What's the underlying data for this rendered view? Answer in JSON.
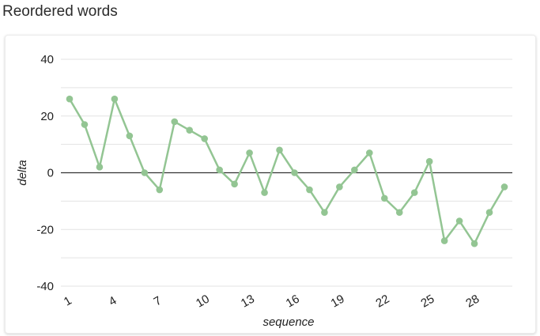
{
  "page_title": "Reordered words",
  "chart_data": {
    "type": "line",
    "title": "",
    "xlabel": "sequence",
    "ylabel": "delta",
    "x": [
      1,
      2,
      3,
      4,
      5,
      6,
      7,
      8,
      9,
      10,
      11,
      12,
      13,
      14,
      15,
      16,
      17,
      18,
      19,
      20,
      21,
      22,
      23,
      24,
      25,
      26,
      27,
      28,
      29,
      30
    ],
    "series": [
      {
        "values": [
          26,
          17,
          2,
          26,
          13,
          0,
          -6,
          18,
          15,
          12,
          1,
          -4,
          7,
          -7,
          8,
          0,
          -6,
          -14,
          -5,
          1,
          7,
          -9,
          -14,
          -7,
          4,
          -24,
          -17,
          -25,
          -14,
          -5
        ]
      }
    ],
    "xlim": [
      1,
      30
    ],
    "ylim": [
      -40,
      40
    ],
    "y_ticks": [
      40,
      20,
      0,
      -20,
      -40
    ],
    "y_tick_labels": [
      "40",
      "20",
      "0",
      "-20",
      "-40"
    ],
    "x_ticks": [
      1,
      4,
      7,
      10,
      13,
      16,
      19,
      22,
      25,
      28
    ],
    "x_tick_labels": [
      "1",
      "4",
      "7",
      "10",
      "13",
      "16",
      "19",
      "22",
      "25",
      "28"
    ],
    "grid": true,
    "line_color": "#93c593",
    "zero_line_color": "#333333",
    "grid_color": "#e3e3e3"
  }
}
